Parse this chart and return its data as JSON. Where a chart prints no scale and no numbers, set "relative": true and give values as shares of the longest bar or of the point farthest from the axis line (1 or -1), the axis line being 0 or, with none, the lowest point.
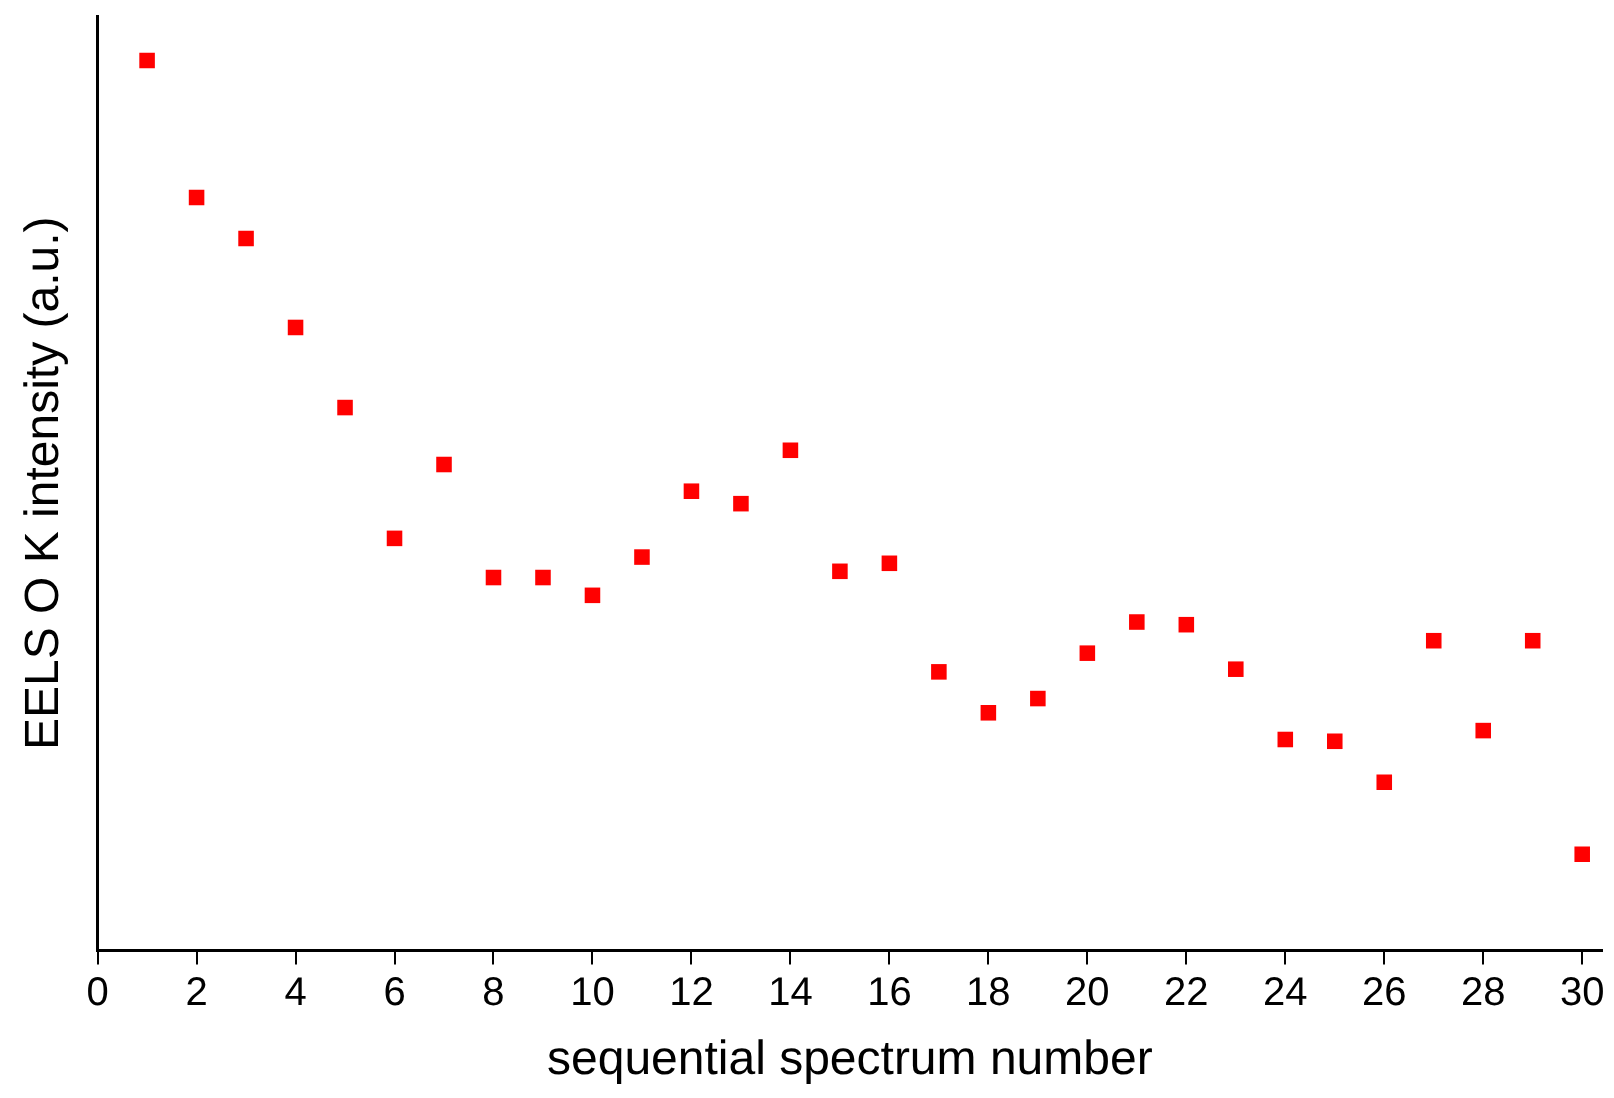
{
  "chart_data": {
    "type": "scatter",
    "xlabel": "sequential spectrum number",
    "ylabel": "EELS O K intensity (a.u.)",
    "relative": true,
    "x": [
      1,
      2,
      3,
      4,
      5,
      6,
      7,
      8,
      9,
      10,
      11,
      12,
      13,
      14,
      15,
      16,
      17,
      18,
      19,
      20,
      21,
      22,
      23,
      24,
      25,
      26,
      27,
      28,
      29,
      30
    ],
    "series": [
      {
        "color": "#ff0000",
        "values": [
          1,
          0.846,
          0.8,
          0.7,
          0.61,
          0.463,
          0.546,
          0.419,
          0.419,
          0.399,
          0.442,
          0.516,
          0.502,
          0.562,
          0.426,
          0.435,
          0.313,
          0.267,
          0.283,
          0.334,
          0.369,
          0.366,
          0.316,
          0.237,
          0.235,
          0.189,
          0.348,
          0.247,
          0.348,
          0.108
        ]
      }
    ],
    "xlim": [
      0,
      30.4
    ],
    "xticks": [
      0,
      2,
      4,
      6,
      8,
      10,
      12,
      14,
      16,
      18,
      20,
      22,
      24,
      26,
      28,
      30
    ],
    "marker": "square",
    "grid": false,
    "legend": false
  }
}
